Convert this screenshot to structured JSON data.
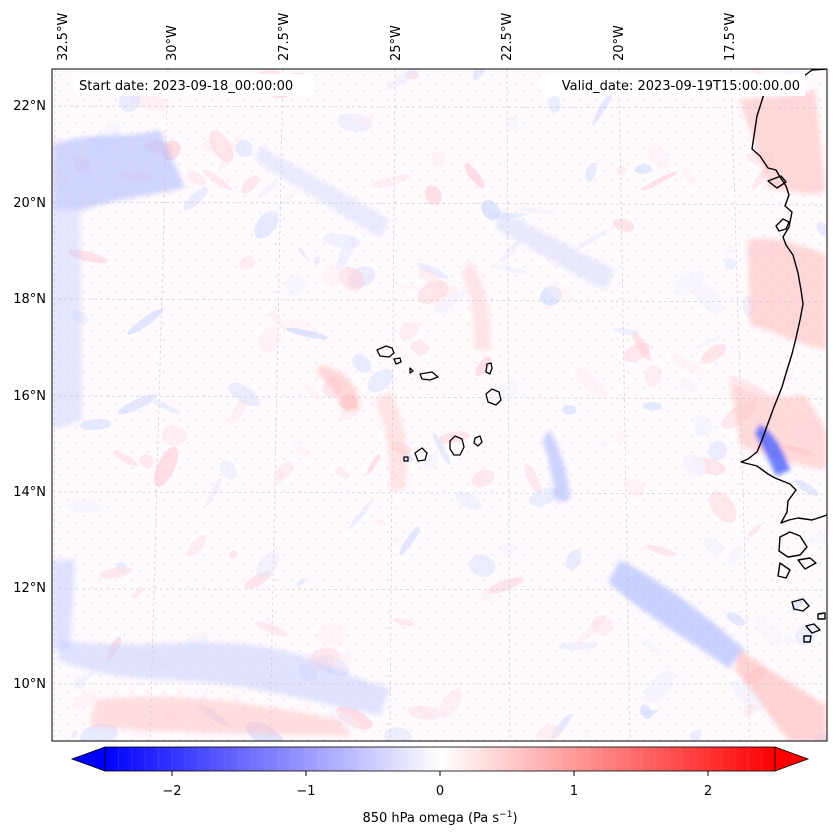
{
  "header": {
    "start_date": "Start date: 2023-09-18_00:00:00",
    "valid_date": "Valid_date: 2023-09-19T15:00:00.00"
  },
  "map": {
    "field": "850 hPa omega",
    "top_longitude_labels": [
      "32.5°W",
      "30°W",
      "27.5°W",
      "25°W",
      "22.5°W",
      "20°W",
      "17.5°W"
    ],
    "left_latitude_labels": [
      "22°N",
      "20°N",
      "18°N",
      "16°N",
      "14°N",
      "12°N",
      "10°N"
    ],
    "gridlines": true,
    "coastline_color": "#000000",
    "colormap": "bwr",
    "features": [
      "Cape Verde islands",
      "West African coastline"
    ]
  },
  "colorbar": {
    "label_main": "850 hPa omega (Pa s",
    "label_exp": "−1",
    "label_close": ")",
    "ticks": [
      "−2",
      "−1",
      "0",
      "1",
      "2"
    ],
    "tick_values": [
      -2,
      -1,
      0,
      1,
      2
    ],
    "range": [
      -2.5,
      2.5
    ],
    "extend": "both",
    "colors": {
      "min": "#0000ff",
      "mid": "#ffffff",
      "max": "#ff0000"
    }
  }
}
